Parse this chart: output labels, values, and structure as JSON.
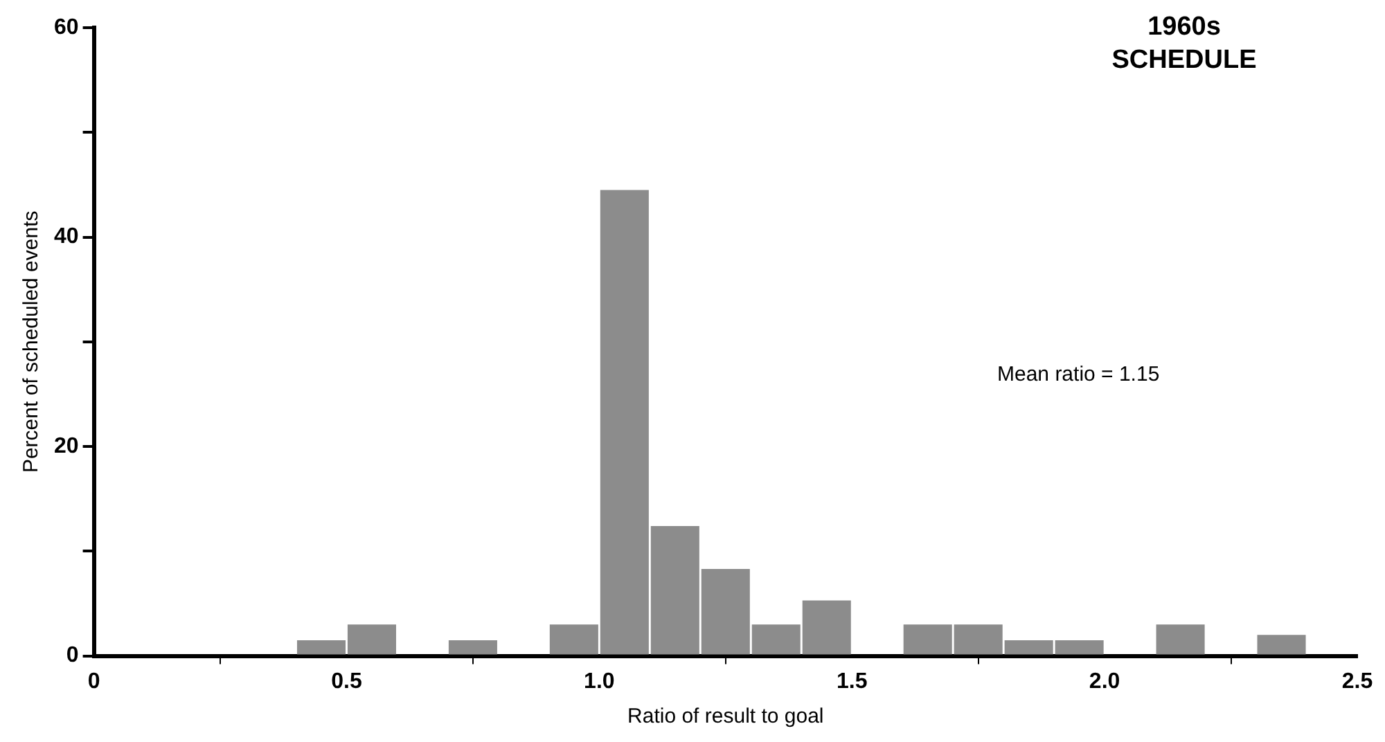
{
  "chart_data": {
    "type": "histogram",
    "title": "1960s SCHEDULE",
    "xlabel": "Ratio of result to goal",
    "ylabel": "Percent of scheduled events",
    "bins": [
      0.4,
      0.5,
      0.6,
      0.7,
      0.8,
      0.9,
      1.0,
      1.1,
      1.2,
      1.3,
      1.4,
      1.5,
      1.6,
      1.7,
      1.8,
      1.9,
      2.0,
      2.1,
      2.2,
      2.3,
      2.4
    ],
    "values": [
      1.5,
      3,
      0,
      1.5,
      0,
      3,
      44.5,
      12.4,
      8.3,
      3,
      5.3,
      0,
      3,
      3,
      1.5,
      1.5,
      0,
      3,
      0,
      2
    ],
    "color": "#8c8c8c",
    "xlim": [
      0,
      2.5
    ],
    "xticks": [
      0,
      0.5,
      {
        "value": 1.0,
        "label": "1.0"
      },
      1.5,
      {
        "value": 2.0,
        "label": "2.0"
      },
      2.5
    ],
    "ylim": [
      0,
      60
    ],
    "yticks": [
      0,
      {
        "value": 10,
        "label": null
      },
      20,
      {
        "value": 30,
        "label": null
      },
      40,
      {
        "value": 50,
        "label": null
      },
      60
    ],
    "grid": false,
    "annotations": [
      "Mean ratio = 1.15"
    ]
  }
}
